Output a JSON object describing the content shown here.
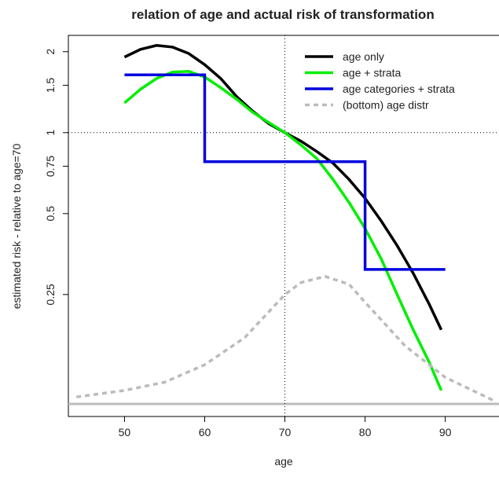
{
  "chart_data": {
    "type": "line",
    "title": "relation of age and actual risk of transformation",
    "x_label": "age",
    "y_label": "estimated risk - relative to age=70",
    "log_y": true,
    "xlim": [
      43,
      96.7
    ],
    "ylim": [
      0.088,
      2.3
    ],
    "xticks": [
      50,
      60,
      70,
      80,
      90
    ],
    "yticks": [
      2,
      1.5,
      1,
      0.75,
      0.5,
      0.25
    ],
    "reference_x": 70,
    "reference_y": 1,
    "legend": "top-right",
    "series": [
      {
        "name": "age only",
        "color": "#000000",
        "line_style": "solid",
        "x": [
          50,
          52,
          54,
          56,
          58,
          60,
          62,
          64,
          66,
          68,
          70,
          72,
          74,
          76,
          78,
          80,
          82,
          84,
          86,
          88,
          89.5
        ],
        "values": [
          1.91,
          2.04,
          2.11,
          2.08,
          1.97,
          1.79,
          1.59,
          1.36,
          1.2,
          1.08,
          1.0,
          0.93,
          0.85,
          0.77,
          0.67,
          0.57,
          0.47,
          0.38,
          0.3,
          0.23,
          0.185
        ]
      },
      {
        "name": "age + strata",
        "color": "#00ee00",
        "line_style": "solid",
        "x": [
          50,
          52,
          54,
          56,
          58,
          60,
          62,
          64,
          66,
          68,
          70,
          72,
          74,
          76,
          78,
          80,
          82,
          84,
          86,
          88,
          89.5
        ],
        "values": [
          1.29,
          1.45,
          1.59,
          1.68,
          1.69,
          1.61,
          1.47,
          1.33,
          1.19,
          1.09,
          1.0,
          0.9,
          0.8,
          0.67,
          0.55,
          0.44,
          0.34,
          0.25,
          0.185,
          0.14,
          0.11
        ]
      },
      {
        "name": "age categories + strata",
        "color": "#0000dd",
        "line_style": "solid",
        "x": [
          50,
          60,
          60,
          80,
          80,
          90
        ],
        "values": [
          1.64,
          1.64,
          0.78,
          0.78,
          0.31,
          0.31
        ]
      },
      {
        "name": "(bottom) age distr",
        "color": "#bbbbbb",
        "line_style": "dashed",
        "x": [
          44,
          50,
          55,
          60,
          65,
          70,
          72,
          75,
          78,
          80,
          85,
          90,
          96
        ],
        "values": [
          0.104,
          0.11,
          0.118,
          0.137,
          0.173,
          0.25,
          0.277,
          0.292,
          0.273,
          0.234,
          0.161,
          0.123,
          0.101
        ]
      }
    ]
  }
}
